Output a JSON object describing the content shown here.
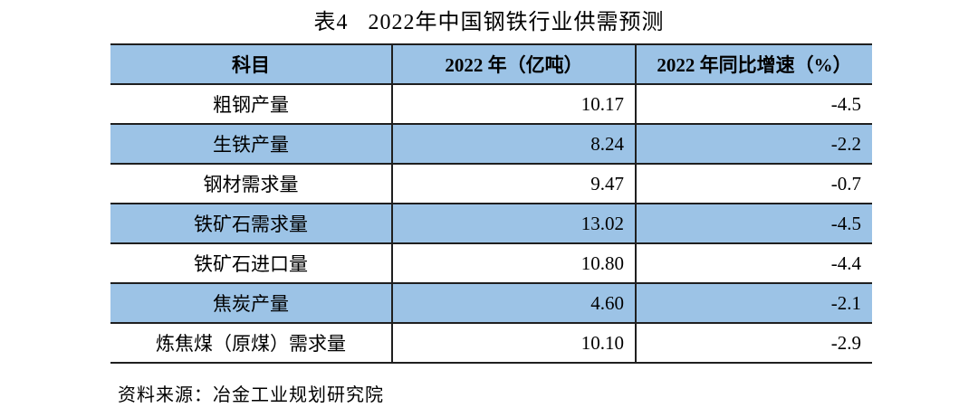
{
  "title": {
    "label": "表4",
    "text": "2022年中国钢铁行业供需预测"
  },
  "table": {
    "headers": {
      "item": "科目",
      "value": "2022 年（亿吨）",
      "growth": "2022 年同比增速（%）"
    },
    "rows": [
      {
        "item": "粗钢产量",
        "value": "10.17",
        "growth": "-4.5"
      },
      {
        "item": "生铁产量",
        "value": "8.24",
        "growth": "-2.2"
      },
      {
        "item": "钢材需求量",
        "value": "9.47",
        "growth": "-0.7"
      },
      {
        "item": "铁矿石需求量",
        "value": "13.02",
        "growth": "-4.5"
      },
      {
        "item": "铁矿石进口量",
        "value": "10.80",
        "growth": "-4.4"
      },
      {
        "item": "焦炭产量",
        "value": "4.60",
        "growth": "-2.1"
      },
      {
        "item": "炼焦煤（原煤）需求量",
        "value": "10.10",
        "growth": "-2.9"
      }
    ]
  },
  "source_note": "资料来源：冶金工业规划研究院",
  "colors": {
    "band_blue": "#9cc3e6",
    "border": "#1f1f1f",
    "text": "#000000",
    "background": "#ffffff"
  }
}
